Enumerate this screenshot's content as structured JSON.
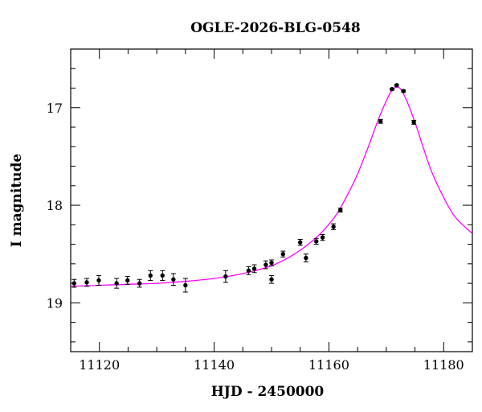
{
  "chart_data": {
    "type": "scatter",
    "title": "OGLE-2026-BLG-0548",
    "xlabel": "HJD - 2450000",
    "ylabel": "I magnitude",
    "xlim": [
      11115,
      11185
    ],
    "ylim": [
      19.5,
      16.4
    ],
    "y_inverted": true,
    "x_ticks": [
      11120,
      11140,
      11160,
      11180
    ],
    "y_ticks": [
      17,
      18,
      19
    ],
    "x_tick_labels": [
      "11120",
      "11140",
      "11160",
      "11180"
    ],
    "y_tick_labels": [
      "17",
      "18",
      "19"
    ],
    "grid": false,
    "legend": "none",
    "colors": {
      "points": "#000000",
      "model": "#ff00ff"
    },
    "series": [
      {
        "kind": "data_points_with_errorbars",
        "points": [
          {
            "x": 11115.6,
            "y": 18.8,
            "err": 0.04
          },
          {
            "x": 11117.8,
            "y": 18.79,
            "err": 0.04
          },
          {
            "x": 11119.9,
            "y": 18.77,
            "err": 0.05
          },
          {
            "x": 11123.0,
            "y": 18.8,
            "err": 0.05
          },
          {
            "x": 11124.9,
            "y": 18.77,
            "err": 0.04
          },
          {
            "x": 11127.0,
            "y": 18.8,
            "err": 0.04
          },
          {
            "x": 11128.9,
            "y": 18.72,
            "err": 0.05
          },
          {
            "x": 11131.0,
            "y": 18.72,
            "err": 0.05
          },
          {
            "x": 11132.9,
            "y": 18.76,
            "err": 0.06
          },
          {
            "x": 11135.0,
            "y": 18.82,
            "err": 0.07
          },
          {
            "x": 11142.0,
            "y": 18.73,
            "err": 0.06
          },
          {
            "x": 11146.0,
            "y": 18.67,
            "err": 0.04
          },
          {
            "x": 11147.0,
            "y": 18.65,
            "err": 0.04
          },
          {
            "x": 11149.0,
            "y": 18.61,
            "err": 0.04
          },
          {
            "x": 11150.0,
            "y": 18.59,
            "err": 0.03
          },
          {
            "x": 11150.0,
            "y": 18.76,
            "err": 0.04
          },
          {
            "x": 11152.0,
            "y": 18.5,
            "err": 0.03
          },
          {
            "x": 11155.0,
            "y": 18.38,
            "err": 0.03
          },
          {
            "x": 11156.0,
            "y": 18.54,
            "err": 0.04
          },
          {
            "x": 11157.8,
            "y": 18.37,
            "err": 0.03
          },
          {
            "x": 11158.9,
            "y": 18.33,
            "err": 0.03
          },
          {
            "x": 11160.8,
            "y": 18.22,
            "err": 0.03
          },
          {
            "x": 11162.0,
            "y": 18.05,
            "err": 0.02
          },
          {
            "x": 11169.0,
            "y": 17.14,
            "err": 0.02
          },
          {
            "x": 11171.0,
            "y": 16.81,
            "err": 0.01
          },
          {
            "x": 11171.8,
            "y": 16.77,
            "err": 0.01
          },
          {
            "x": 11173.0,
            "y": 16.83,
            "err": 0.01
          },
          {
            "x": 11174.8,
            "y": 17.15,
            "err": 0.02
          }
        ]
      },
      {
        "kind": "model_curve",
        "x": [
          11115,
          11120,
          11125,
          11130,
          11135,
          11140,
          11145,
          11150,
          11154,
          11158,
          11161,
          11163,
          11165,
          11167,
          11168.5,
          11170,
          11171,
          11171.8,
          11172.5,
          11173.5,
          11175,
          11176.5,
          11178,
          11180,
          11182,
          11185
        ],
        "y": [
          18.83,
          18.82,
          18.81,
          18.8,
          18.78,
          18.75,
          18.7,
          18.62,
          18.5,
          18.32,
          18.12,
          17.92,
          17.68,
          17.38,
          17.14,
          16.93,
          16.82,
          16.79,
          16.81,
          16.92,
          17.15,
          17.42,
          17.67,
          17.92,
          18.12,
          18.29
        ]
      }
    ]
  }
}
